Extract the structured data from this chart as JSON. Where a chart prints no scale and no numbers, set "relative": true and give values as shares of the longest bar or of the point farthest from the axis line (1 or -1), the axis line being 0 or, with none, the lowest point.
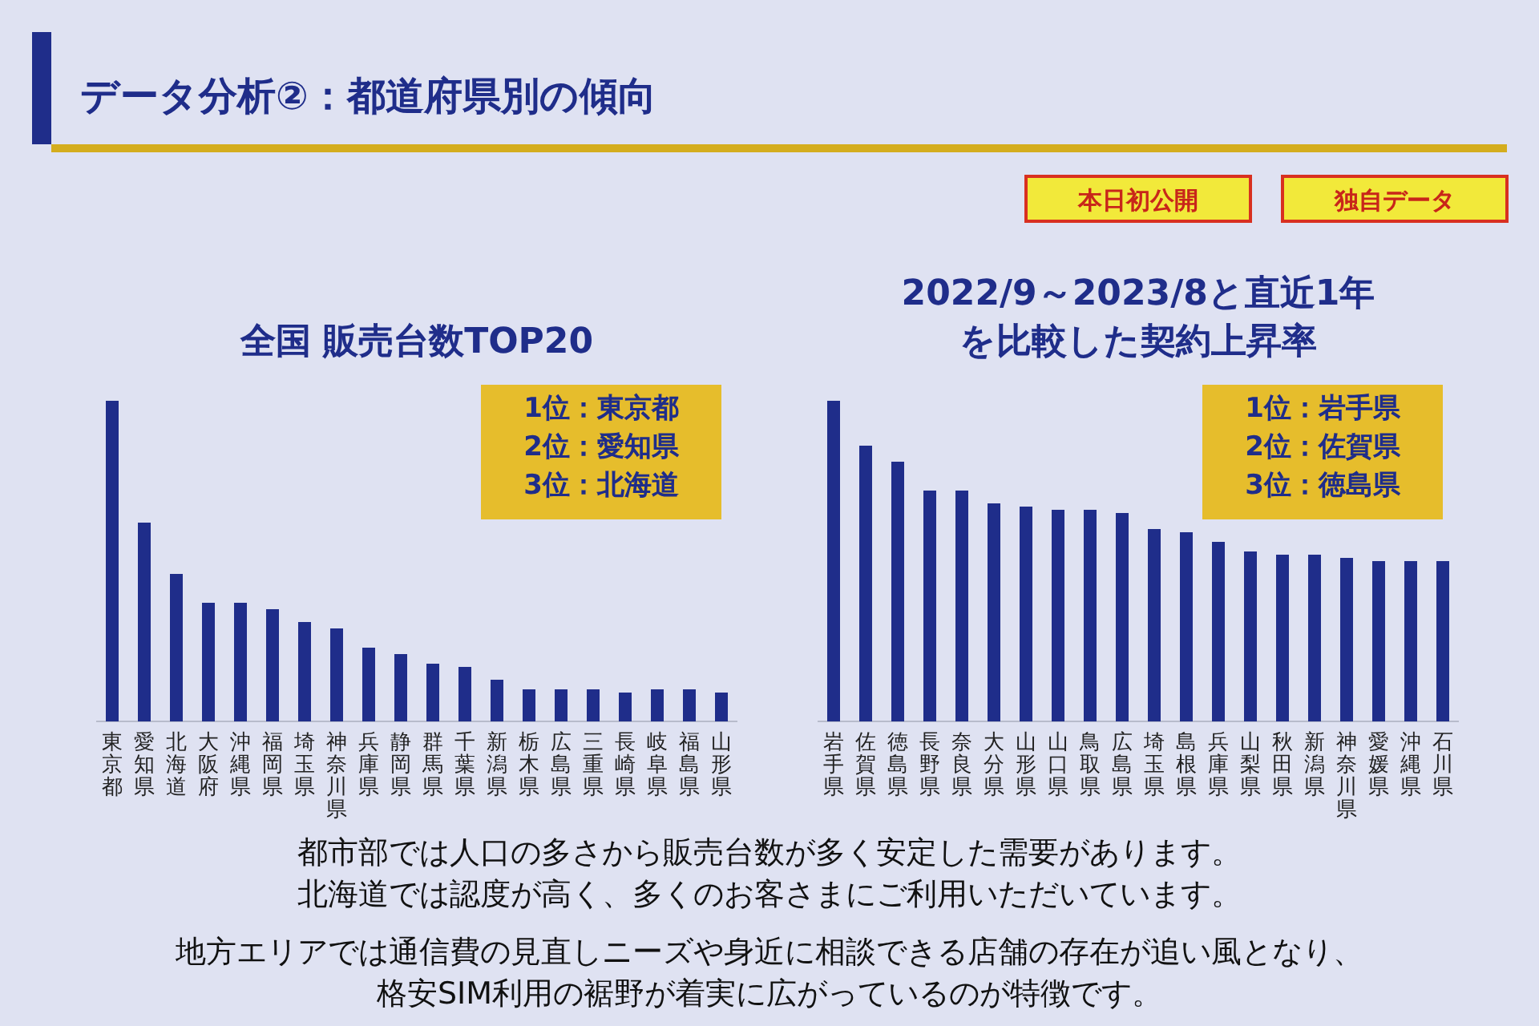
{
  "chart_data": [
    {
      "type": "other",
      "title": "データ分析②：都道府県別の傾向",
      "annotations": [
        "本日初公開",
        "独自データ",
        "都市部では人口の多さから販売台数が多く安定した需要があります。",
        "北海道では認度が高く、多くのお客さまにご利用いただいています。",
        "地方エリアでは通信費の見直しニーズや身近に相談できる店舗の存在が追い風となり、",
        "格安SIM利用の裾野が着実に広がっているのが特徴です。"
      ]
    },
    {
      "type": "bar",
      "title": "全国 販売台数TOP20",
      "relative": true,
      "color": "#1f2d8a",
      "categories": [
        "東京都",
        "愛知県",
        "北海道",
        "大阪府",
        "沖縄県",
        "福岡県",
        "埼玉県",
        "神奈川県",
        "兵庫県",
        "静岡県",
        "群馬県",
        "千葉県",
        "新潟県",
        "栃木県",
        "広島県",
        "三重県",
        "長崎県",
        "岐阜県",
        "福島県",
        "山形県"
      ],
      "values": [
        1,
        0.62,
        0.46,
        0.37,
        0.37,
        0.35,
        0.31,
        0.29,
        0.23,
        0.21,
        0.18,
        0.17,
        0.13,
        0.1,
        0.1,
        0.1,
        0.09,
        0.1,
        0.1,
        0.09
      ],
      "annotations": [
        "1位：東京都",
        "2位：愛知県",
        "3位：北海道"
      ]
    },
    {
      "type": "bar",
      "title": "2022/9～2023/8と直近1年を比較した契約上昇率",
      "relative": true,
      "color": "#1f2d8a",
      "categories": [
        "岩手県",
        "佐賀県",
        "徳島県",
        "長野県",
        "奈良県",
        "大分県",
        "山形県",
        "山口県",
        "鳥取県",
        "広島県",
        "埼玉県",
        "島根県",
        "兵庫県",
        "山梨県",
        "秋田県",
        "新潟県",
        "神奈川県",
        "愛媛県",
        "沖縄県",
        "石川県"
      ],
      "values": [
        1,
        0.86,
        0.81,
        0.72,
        0.72,
        0.68,
        0.67,
        0.66,
        0.66,
        0.65,
        0.6,
        0.59,
        0.56,
        0.53,
        0.52,
        0.52,
        0.51,
        0.5,
        0.5,
        0.5
      ],
      "annotations": [
        "1位：岩手県",
        "2位：佐賀県",
        "3位：徳島県"
      ]
    }
  ]
}
